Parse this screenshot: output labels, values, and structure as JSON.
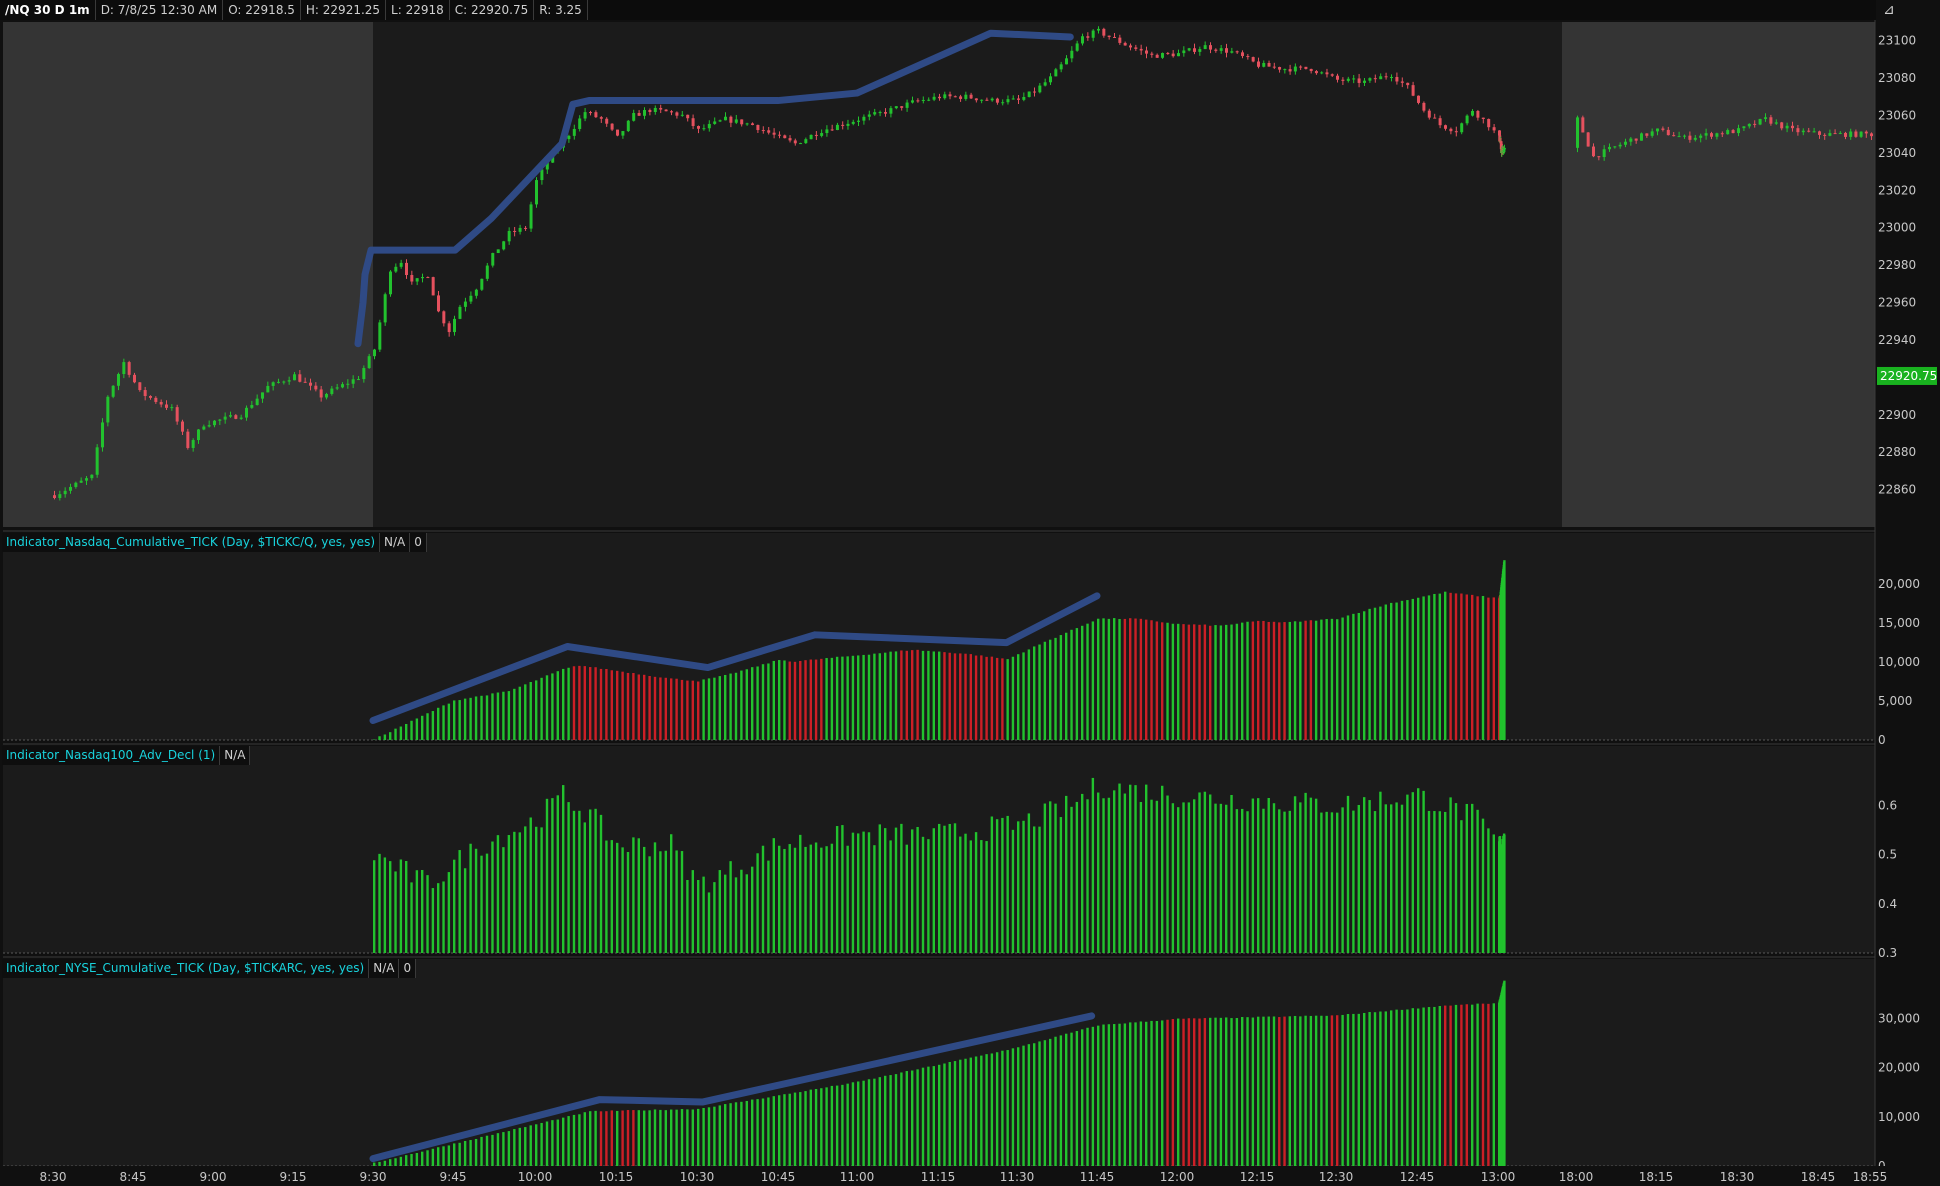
{
  "header": {
    "symbol": "/NQ 30 D 1m",
    "date": "D: 7/8/25 12:30 AM",
    "open": "O: 22918.5",
    "high": "H: 22921.25",
    "low": "L: 22918",
    "close": "C: 22920.75",
    "range": "R: 3.25",
    "last_price_badge": "22920.75"
  },
  "panes": {
    "pane1_name": "Indicator_Nasdaq_Cumulative_TICK (Day, $TICKC/Q, yes, yes)",
    "pane1_val1": "N/A",
    "pane1_val2": "0",
    "pane2_name": "Indicator_Nasdaq100_Adv_Decl (1)",
    "pane2_val1": "N/A",
    "pane3_name": "Indicator_NYSE_Cumulative_TICK (Day, $TICKARC, yes, yes)",
    "pane3_val1": "N/A",
    "pane3_val2": "0"
  },
  "colors": {
    "up": "#22c22e",
    "down": "#e5515e",
    "bar_red": "#cc1f26",
    "annotation": "#2f4a85",
    "badge": "#19b21f",
    "session_shade": "#343434",
    "session_regular": "#1b1b1b"
  },
  "chart_data": [
    {
      "type": "candlestick",
      "ylim": [
        22840,
        23110
      ],
      "yticks": [
        "23100",
        "23080",
        "23060",
        "23040",
        "23020",
        "23000",
        "22980",
        "22960",
        "22940",
        "22920",
        "22900",
        "22880",
        "22860"
      ],
      "x_ticks": [
        "8:30",
        "8:45",
        "9:00",
        "9:15",
        "9:30",
        "9:45",
        "10:00",
        "10:15",
        "10:30",
        "10:45",
        "11:00",
        "11:15",
        "11:30",
        "11:45",
        "12:00",
        "12:15",
        "12:30",
        "12:45",
        "13:00",
        "18:00",
        "18:15",
        "18:30",
        "18:45",
        "18:55"
      ],
      "close_path": [
        [
          "8:30",
          22857
        ],
        [
          "8:37",
          22867
        ],
        [
          "8:40",
          22910
        ],
        [
          "8:43",
          22928
        ],
        [
          "8:46",
          22912
        ],
        [
          "8:52",
          22903
        ],
        [
          "8:55",
          22883
        ],
        [
          "8:58",
          22895
        ],
        [
          "9:05",
          22900
        ],
        [
          "9:10",
          22915
        ],
        [
          "9:15",
          22921
        ],
        [
          "9:20",
          22910
        ],
        [
          "9:27",
          22920
        ],
        [
          "9:30",
          22935
        ],
        [
          "9:33",
          22978
        ],
        [
          "9:35",
          22982
        ],
        [
          "9:37",
          22970
        ],
        [
          "9:40",
          22975
        ],
        [
          "9:42",
          22955
        ],
        [
          "9:44",
          22945
        ],
        [
          "9:46",
          22958
        ],
        [
          "9:49",
          22968
        ],
        [
          "9:52",
          22985
        ],
        [
          "9:55",
          22997
        ],
        [
          "9:58",
          23000
        ],
        [
          "10:00",
          23025
        ],
        [
          "10:03",
          23040
        ],
        [
          "10:06",
          23050
        ],
        [
          "10:09",
          23062
        ],
        [
          "10:12",
          23058
        ],
        [
          "10:15",
          23048
        ],
        [
          "10:18",
          23060
        ],
        [
          "10:21",
          23063
        ],
        [
          "10:24",
          23062
        ],
        [
          "10:27",
          23060
        ],
        [
          "10:30",
          23052
        ],
        [
          "10:35",
          23058
        ],
        [
          "10:40",
          23055
        ],
        [
          "10:45",
          23048
        ],
        [
          "10:48",
          23045
        ],
        [
          "10:53",
          23052
        ],
        [
          "11:00",
          23058
        ],
        [
          "11:05",
          23062
        ],
        [
          "11:10",
          23067
        ],
        [
          "11:15",
          23070
        ],
        [
          "11:20",
          23070
        ],
        [
          "11:25",
          23068
        ],
        [
          "11:30",
          23068
        ],
        [
          "11:33",
          23073
        ],
        [
          "11:36",
          23080
        ],
        [
          "11:39",
          23090
        ],
        [
          "11:42",
          23102
        ],
        [
          "11:45",
          23105
        ],
        [
          "11:50",
          23098
        ],
        [
          "11:55",
          23092
        ],
        [
          "12:00",
          23093
        ],
        [
          "12:05",
          23097
        ],
        [
          "12:10",
          23094
        ],
        [
          "12:15",
          23087
        ],
        [
          "12:20",
          23085
        ],
        [
          "12:25",
          23085
        ],
        [
          "12:30",
          23079
        ],
        [
          "12:35",
          23078
        ],
        [
          "12:40",
          23082
        ],
        [
          "12:43",
          23075
        ],
        [
          "12:46",
          23063
        ],
        [
          "12:49",
          23055
        ],
        [
          "12:52",
          23052
        ],
        [
          "12:55",
          23063
        ],
        [
          "12:58",
          23055
        ],
        [
          "13:00",
          23048
        ],
        [
          "13:05",
          23045
        ],
        [
          "13:08",
          23041
        ],
        [
          "18:00",
          23058
        ],
        [
          "18:03",
          23038
        ],
        [
          "18:10",
          23047
        ],
        [
          "18:15",
          23052
        ],
        [
          "18:20",
          23048
        ],
        [
          "18:30",
          23052
        ],
        [
          "18:35",
          23058
        ],
        [
          "18:40",
          23052
        ],
        [
          "18:45",
          23050
        ],
        [
          "18:55",
          23050
        ]
      ]
    },
    {
      "type": "bar",
      "series_name": "Indicator_Nasdaq_Cumulative_TICK",
      "ylim": [
        0,
        24000
      ],
      "yticks": [
        "20,000",
        "15,000",
        "10,000",
        "5,000",
        "0"
      ],
      "red_ranges": [
        [
          "10:07",
          "10:30"
        ],
        [
          "10:47",
          "10:53"
        ],
        [
          "11:08",
          "11:11"
        ],
        [
          "11:16",
          "11:27"
        ],
        [
          "11:50",
          "11:57"
        ],
        [
          "12:01",
          "12:06"
        ],
        [
          "12:14",
          "12:20"
        ],
        [
          "12:24",
          "12:25"
        ],
        [
          "12:51",
          "12:56"
        ],
        [
          "12:58",
          "13:04"
        ]
      ],
      "path": [
        [
          "9:30",
          0
        ],
        [
          "9:45",
          5000
        ],
        [
          "9:55",
          6200
        ],
        [
          "10:05",
          9000
        ],
        [
          "10:08",
          9500
        ],
        [
          "10:15",
          8800
        ],
        [
          "10:25",
          7800
        ],
        [
          "10:30",
          7500
        ],
        [
          "10:35",
          8200
        ],
        [
          "10:45",
          10200
        ],
        [
          "10:48",
          10000
        ],
        [
          "11:00",
          10800
        ],
        [
          "11:10",
          11500
        ],
        [
          "11:20",
          11000
        ],
        [
          "11:28",
          10300
        ],
        [
          "11:35",
          12500
        ],
        [
          "11:45",
          15500
        ],
        [
          "11:52",
          15500
        ],
        [
          "12:00",
          14800
        ],
        [
          "12:08",
          14600
        ],
        [
          "12:15",
          15200
        ],
        [
          "12:20",
          15000
        ],
        [
          "12:30",
          15500
        ],
        [
          "12:40",
          17500
        ],
        [
          "12:50",
          18900
        ],
        [
          "13:00",
          18100
        ],
        [
          "13:05",
          18600
        ],
        [
          "13:20",
          23000
        ]
      ]
    },
    {
      "type": "bar",
      "series_name": "Indicator_Nasdaq100_Adv_Decl",
      "ylim": [
        0.3,
        0.68
      ],
      "yticks": [
        "0.6",
        "0.5",
        "0.4",
        "0.3"
      ]
    },
    {
      "type": "bar",
      "series_name": "Indicator_NYSE_Cumulative_TICK",
      "ylim": [
        0,
        38000
      ],
      "yticks": [
        "30,000",
        "20,000",
        "10,000",
        "0"
      ],
      "red_ranges": [
        [
          "10:12",
          "10:14"
        ],
        [
          "10:16",
          "10:18"
        ],
        [
          "11:58",
          "11:59"
        ],
        [
          "12:01",
          "12:05"
        ],
        [
          "12:19",
          "12:20"
        ],
        [
          "12:29",
          "12:30"
        ],
        [
          "12:50",
          "12:51"
        ],
        [
          "12:53",
          "12:54"
        ],
        [
          "12:57",
          "12:58"
        ]
      ],
      "path": [
        [
          "9:30",
          500
        ],
        [
          "10:10",
          11000
        ],
        [
          "10:30",
          11500
        ],
        [
          "11:00",
          17000
        ],
        [
          "11:30",
          24000
        ],
        [
          "11:45",
          28500
        ],
        [
          "12:00",
          29800
        ],
        [
          "12:30",
          30500
        ],
        [
          "12:50",
          32500
        ],
        [
          "13:00",
          33000
        ],
        [
          "13:20",
          37500
        ]
      ]
    }
  ]
}
